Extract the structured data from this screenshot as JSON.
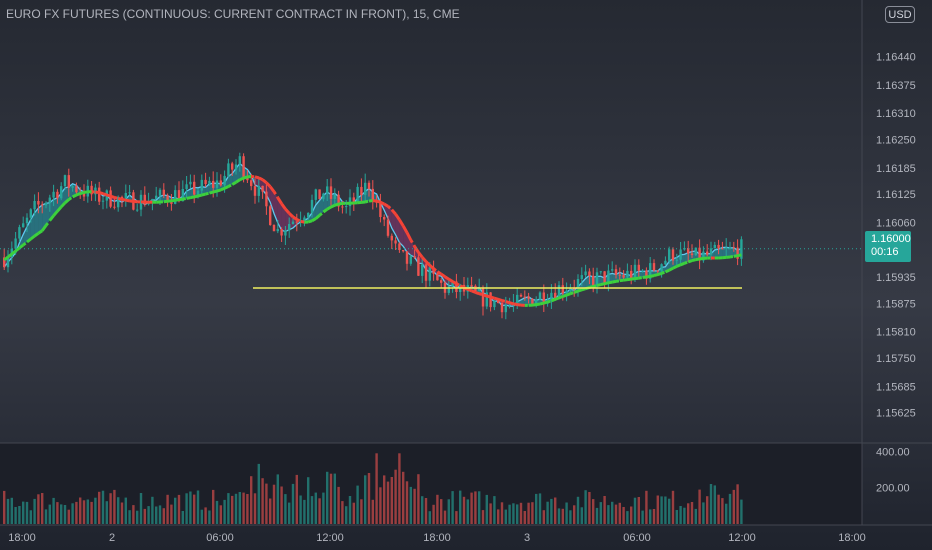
{
  "header": {
    "title": "EURO FX FUTURES (CONTINUOUS: CURRENT CONTRACT IN FRONT), 15, CME",
    "currency": "USD"
  },
  "price_tag": {
    "price": "1.16000",
    "countdown": "00:16"
  },
  "colors": {
    "background": "#1e222d",
    "up_candle": "#26a69a",
    "down_candle": "#ef5350",
    "cloud_bull": "#1fb8c8",
    "cloud_bear": "#a0307a",
    "cloud_border": "#5fc8f0",
    "trend_line_green": "#3cd13c",
    "trend_line_red": "#f44336",
    "support_line": "#f0f060"
  },
  "chart_data": {
    "type": "candlestick",
    "symbol": "EURO FX FUTURES (CONTINUOUS: CURRENT CONTRACT IN FRONT)",
    "interval": "15",
    "exchange": "CME",
    "ylim": [
      1.15585,
      1.16505
    ],
    "y_ticks": [
      "1.16440",
      "1.16375",
      "1.16310",
      "1.16250",
      "1.16185",
      "1.16125",
      "1.16060",
      "1.15935",
      "1.15875",
      "1.15810",
      "1.15750",
      "1.15685",
      "1.15625"
    ],
    "x_ticks": [
      "18:00",
      "2",
      "06:00",
      "12:00",
      "18:00",
      "3",
      "06:00",
      "12:00",
      "18:00"
    ],
    "volume_ticks": [
      "400.00",
      "200.00"
    ],
    "volume_ylim": [
      0,
      430
    ],
    "last_price": 1.16,
    "support_level": 1.1591,
    "grid": false,
    "legend": "none",
    "series": [
      {
        "name": "",
        "type": "candles",
        "count": 195
      },
      {
        "name": "",
        "type": "volume"
      },
      {
        "name": "",
        "type": "moving-average"
      },
      {
        "name": "",
        "type": "cloud"
      }
    ]
  }
}
